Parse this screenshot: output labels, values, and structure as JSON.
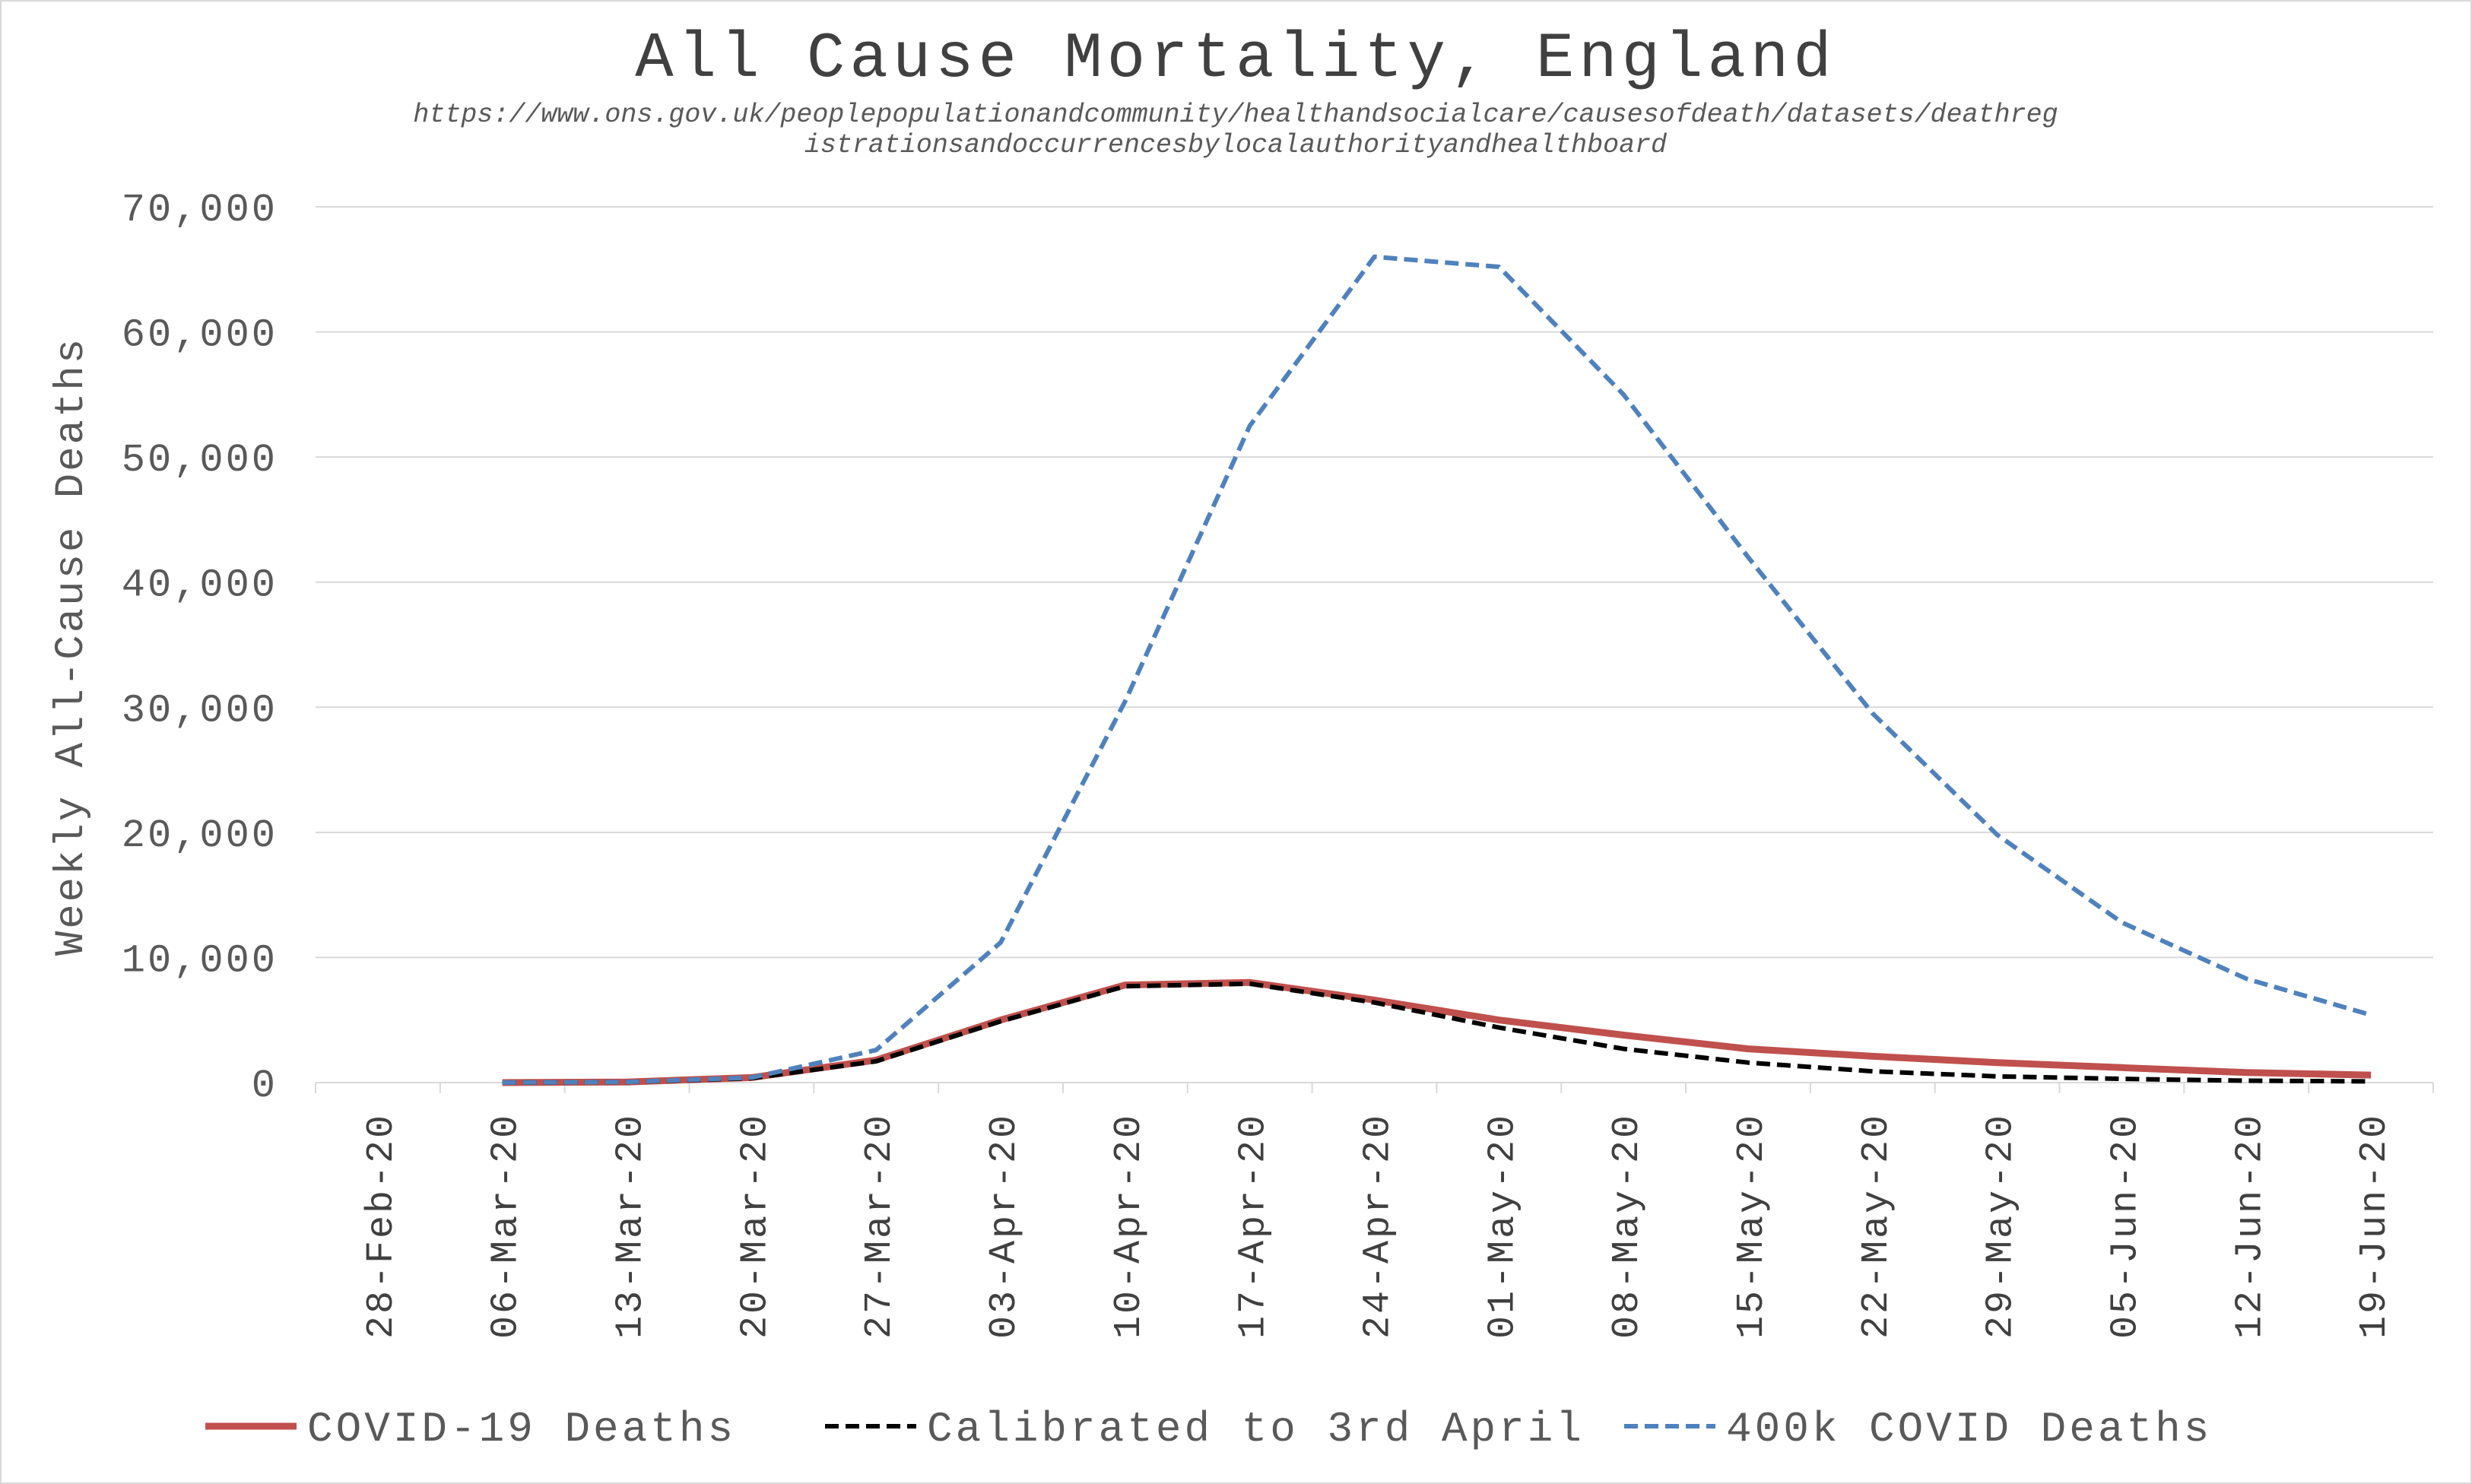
{
  "chart_data": {
    "type": "line",
    "title": "All Cause Mortality, England",
    "subtitle_lines": [
      "https://www.ons.gov.uk/peoplepopulationandcommunity/healthandsocialcare/causesofdeath/datasets/deathreg",
      "istrationsandoccurrencesbylocalauthorityandhealthboard"
    ],
    "xlabel": "",
    "ylabel": "Weekly All-Cause Deaths",
    "ylim": [
      0,
      70000
    ],
    "yticks": [
      0,
      10000,
      20000,
      30000,
      40000,
      50000,
      60000,
      70000
    ],
    "ytick_labels": [
      "0",
      "10,000",
      "20,000",
      "30,000",
      "40,000",
      "50,000",
      "60,000",
      "70,000"
    ],
    "categories": [
      "28-Feb-20",
      "06-Mar-20",
      "13-Mar-20",
      "20-Mar-20",
      "27-Mar-20",
      "03-Apr-20",
      "10-Apr-20",
      "17-Apr-20",
      "24-Apr-20",
      "01-May-20",
      "08-May-20",
      "15-May-20",
      "22-May-20",
      "29-May-20",
      "05-Jun-20",
      "12-Jun-20",
      "19-Jun-20"
    ],
    "grid": true,
    "legend_position": "bottom",
    "series": [
      {
        "name": "COVID-19 Deaths",
        "color": "#c0504d",
        "dash": "solid",
        "values": [
          null,
          0,
          50,
          400,
          1800,
          5000,
          7800,
          8000,
          6600,
          5000,
          3800,
          2700,
          2100,
          1600,
          1200,
          800,
          600
        ]
      },
      {
        "name": "Calibrated to 3rd April",
        "color": "#000000",
        "dash": "dashed",
        "values": [
          null,
          0,
          50,
          350,
          1700,
          4900,
          7700,
          7900,
          6400,
          4400,
          2700,
          1600,
          900,
          500,
          300,
          150,
          100
        ]
      },
      {
        "name": "400k COVID Deaths",
        "color": "#4f81bd",
        "dash": "dashed",
        "values": [
          null,
          0,
          50,
          400,
          2600,
          11200,
          30500,
          52500,
          66000,
          65200,
          55000,
          42000,
          29500,
          19800,
          12800,
          8300,
          5400
        ]
      }
    ]
  }
}
